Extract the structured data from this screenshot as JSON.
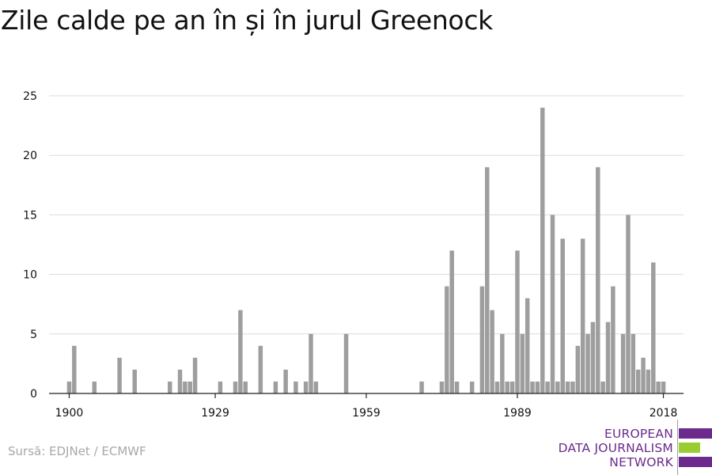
{
  "title": "Zile calde pe an în și în jurul Greenock",
  "source": "Sursă: EDJNet / ECMWF",
  "logo": {
    "lines": [
      "EUROPEAN",
      "DATA JOURNALISM",
      "NETWORK"
    ],
    "colors": {
      "purple": "#6c2a8c",
      "green": "#9acd32"
    }
  },
  "colors": {
    "bar": "#9e9e9e",
    "grid": "#dcdcdc",
    "axis": "#222222",
    "text": "#111111"
  },
  "chart_data": {
    "type": "bar",
    "title": "Zile calde pe an în și în jurul Greenock",
    "xlabel": "",
    "ylabel": "",
    "xlim": [
      1896,
      2022
    ],
    "ylim": [
      0,
      25
    ],
    "x_ticks": [
      1900,
      1929,
      1959,
      1989,
      2018
    ],
    "y_ticks": [
      0,
      5,
      10,
      15,
      20,
      25
    ],
    "grid": true,
    "x": [
      1900,
      1901,
      1905,
      1910,
      1913,
      1920,
      1922,
      1923,
      1924,
      1925,
      1930,
      1933,
      1934,
      1935,
      1938,
      1941,
      1943,
      1945,
      1947,
      1948,
      1949,
      1955,
      1970,
      1974,
      1975,
      1976,
      1977,
      1980,
      1982,
      1983,
      1984,
      1985,
      1986,
      1987,
      1988,
      1989,
      1990,
      1991,
      1992,
      1993,
      1994,
      1995,
      1996,
      1997,
      1998,
      1999,
      2000,
      2001,
      2002,
      2003,
      2004,
      2005,
      2006,
      2007,
      2008,
      2010,
      2011,
      2012,
      2013,
      2014,
      2015,
      2016,
      2017,
      2018
    ],
    "values": [
      1,
      4,
      1,
      3,
      2,
      1,
      2,
      1,
      1,
      3,
      1,
      1,
      7,
      1,
      4,
      1,
      2,
      1,
      1,
      5,
      1,
      5,
      1,
      1,
      9,
      12,
      1,
      1,
      9,
      19,
      7,
      1,
      5,
      1,
      1,
      12,
      5,
      8,
      1,
      1,
      24,
      1,
      15,
      1,
      13,
      1,
      1,
      4,
      13,
      5,
      6,
      19,
      1,
      6,
      9,
      5,
      15,
      5,
      2,
      3,
      2,
      11,
      1,
      1
    ]
  }
}
